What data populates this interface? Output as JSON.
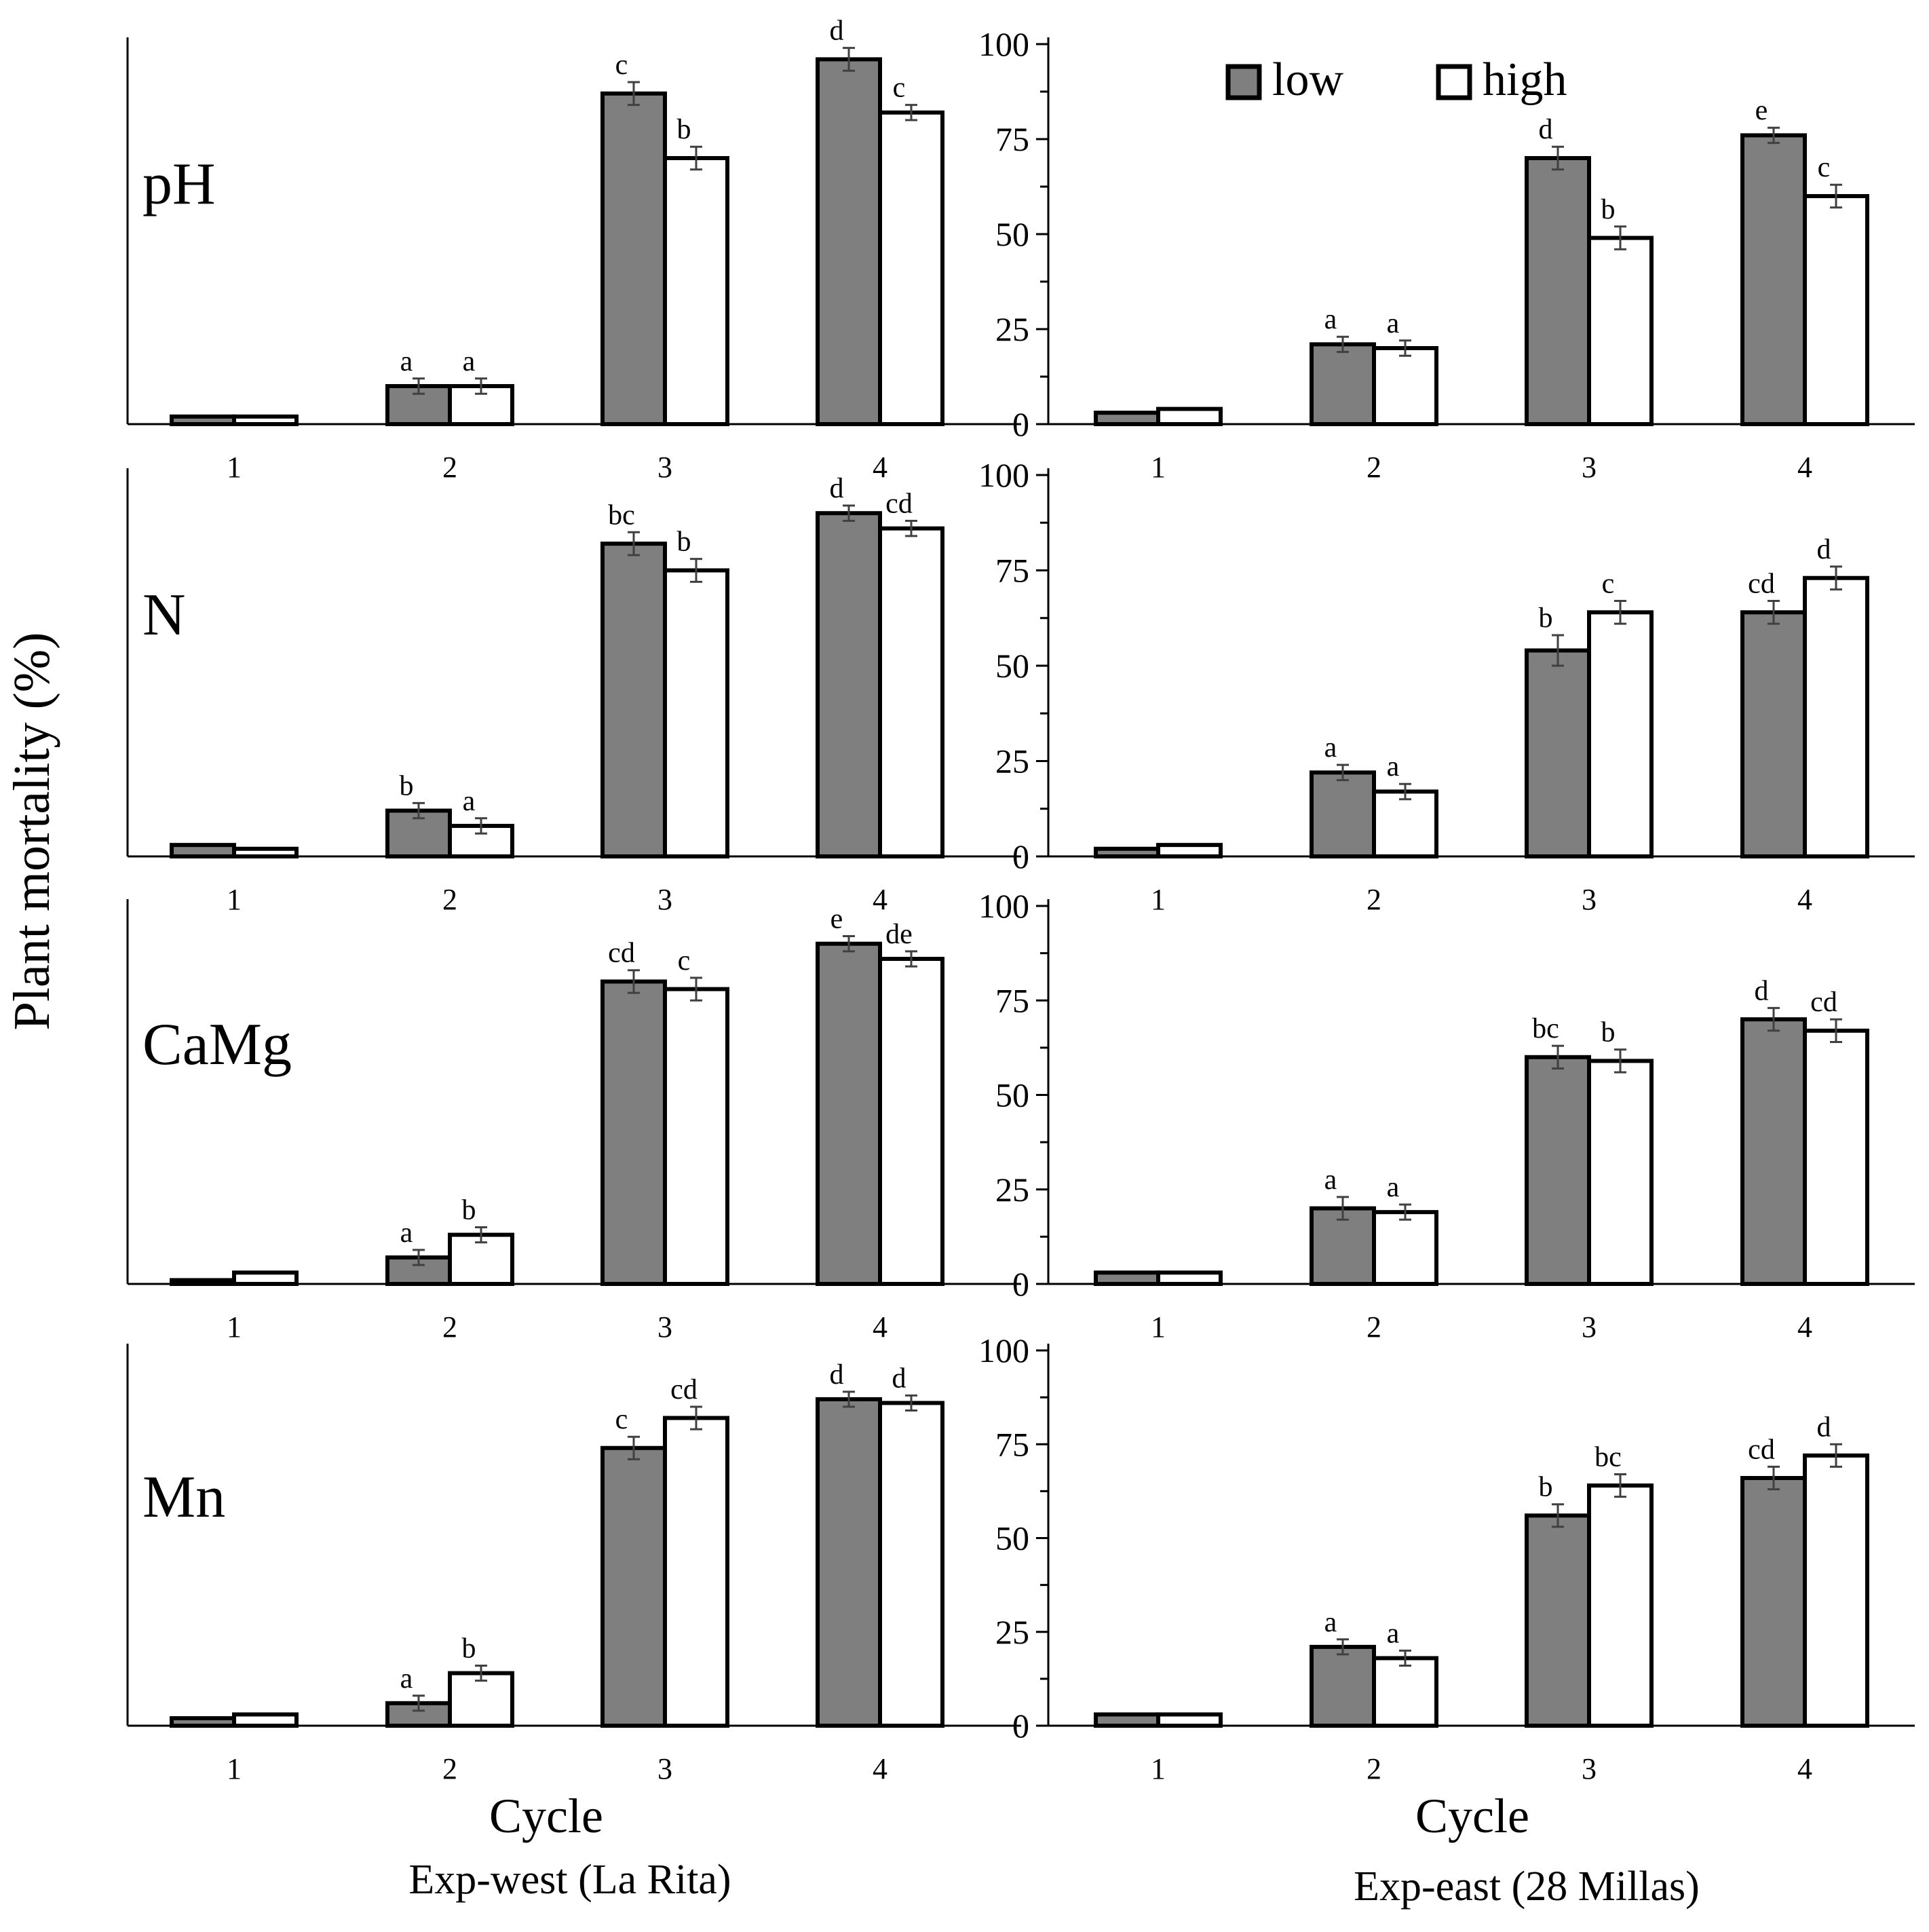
{
  "figure": {
    "ylabel": "Plant mortality (%)",
    "xlabel": "Cycle",
    "legend": [
      {
        "key": "low",
        "label": "low",
        "fill": "#7f7f7f"
      },
      {
        "key": "high",
        "label": "high",
        "fill": "#ffffff"
      }
    ],
    "columns": [
      {
        "key": "west",
        "title": "Exp-west (La Rita)"
      },
      {
        "key": "east",
        "title": "Exp-east (28 Millas)"
      }
    ],
    "colors": {
      "low": "#7f7f7f",
      "high": "#ffffff",
      "axis": "#000000",
      "error": "#404040"
    }
  },
  "chart_data": [
    {
      "type": "bar",
      "row_label": "pH",
      "column": "Exp-west (La Rita)",
      "categories": [
        "1",
        "2",
        "3",
        "4"
      ],
      "ylim": [
        0,
        100
      ],
      "series": [
        {
          "name": "low",
          "values": [
            2,
            10,
            87,
            96
          ],
          "errors": [
            0,
            2,
            3,
            3
          ],
          "letters": [
            "",
            "a",
            "c",
            "d"
          ]
        },
        {
          "name": "high",
          "values": [
            2,
            10,
            70,
            82
          ],
          "errors": [
            0,
            2,
            3,
            2
          ],
          "letters": [
            "",
            "a",
            "b",
            "c"
          ]
        }
      ]
    },
    {
      "type": "bar",
      "row_label": "pH",
      "column": "Exp-east (28 Millas)",
      "categories": [
        "1",
        "2",
        "3",
        "4"
      ],
      "ylim": [
        0,
        100
      ],
      "yticks": [
        "0",
        "25",
        "50",
        "75",
        "100"
      ],
      "series": [
        {
          "name": "low",
          "values": [
            3,
            21,
            70,
            76
          ],
          "errors": [
            0,
            2,
            3,
            2
          ],
          "letters": [
            "",
            "a",
            "d",
            "e"
          ]
        },
        {
          "name": "high",
          "values": [
            4,
            20,
            49,
            60
          ],
          "errors": [
            0,
            2,
            3,
            3
          ],
          "letters": [
            "",
            "a",
            "b",
            "c"
          ]
        }
      ]
    },
    {
      "type": "bar",
      "row_label": "N",
      "column": "Exp-west (La Rita)",
      "categories": [
        "1",
        "2",
        "3",
        "4"
      ],
      "ylim": [
        0,
        100
      ],
      "series": [
        {
          "name": "low",
          "values": [
            3,
            12,
            82,
            90
          ],
          "errors": [
            0,
            2,
            3,
            2
          ],
          "letters": [
            "",
            "b",
            "bc",
            "d"
          ]
        },
        {
          "name": "high",
          "values": [
            2,
            8,
            75,
            86
          ],
          "errors": [
            0,
            2,
            3,
            2
          ],
          "letters": [
            "",
            "a",
            "b",
            "cd"
          ]
        }
      ]
    },
    {
      "type": "bar",
      "row_label": "N",
      "column": "Exp-east (28 Millas)",
      "categories": [
        "1",
        "2",
        "3",
        "4"
      ],
      "ylim": [
        0,
        100
      ],
      "yticks": [
        "0",
        "25",
        "50",
        "75",
        "100"
      ],
      "series": [
        {
          "name": "low",
          "values": [
            2,
            22,
            54,
            64
          ],
          "errors": [
            0,
            2,
            4,
            3
          ],
          "letters": [
            "",
            "a",
            "b",
            "cd"
          ]
        },
        {
          "name": "high",
          "values": [
            3,
            17,
            64,
            73
          ],
          "errors": [
            0,
            2,
            3,
            3
          ],
          "letters": [
            "",
            "a",
            "c",
            "d"
          ]
        }
      ]
    },
    {
      "type": "bar",
      "row_label": "CaMg",
      "column": "Exp-west (La Rita)",
      "categories": [
        "1",
        "2",
        "3",
        "4"
      ],
      "ylim": [
        0,
        100
      ],
      "series": [
        {
          "name": "low",
          "values": [
            1,
            7,
            80,
            90
          ],
          "errors": [
            0,
            2,
            3,
            2
          ],
          "letters": [
            "",
            "a",
            "cd",
            "e"
          ]
        },
        {
          "name": "high",
          "values": [
            3,
            13,
            78,
            86
          ],
          "errors": [
            0,
            2,
            3,
            2
          ],
          "letters": [
            "",
            "b",
            "c",
            "de"
          ]
        }
      ]
    },
    {
      "type": "bar",
      "row_label": "CaMg",
      "column": "Exp-east (28 Millas)",
      "categories": [
        "1",
        "2",
        "3",
        "4"
      ],
      "ylim": [
        0,
        100
      ],
      "yticks": [
        "0",
        "25",
        "50",
        "75",
        "100"
      ],
      "series": [
        {
          "name": "low",
          "values": [
            3,
            20,
            60,
            70
          ],
          "errors": [
            0,
            3,
            3,
            3
          ],
          "letters": [
            "",
            "a",
            "bc",
            "d"
          ]
        },
        {
          "name": "high",
          "values": [
            3,
            19,
            59,
            67
          ],
          "errors": [
            0,
            2,
            3,
            3
          ],
          "letters": [
            "",
            "a",
            "b",
            "cd"
          ]
        }
      ]
    },
    {
      "type": "bar",
      "row_label": "Mn",
      "column": "Exp-west (La Rita)",
      "categories": [
        "1",
        "2",
        "3",
        "4"
      ],
      "ylim": [
        0,
        100
      ],
      "series": [
        {
          "name": "low",
          "values": [
            2,
            6,
            74,
            87
          ],
          "errors": [
            0,
            2,
            3,
            2
          ],
          "letters": [
            "",
            "a",
            "c",
            "d"
          ]
        },
        {
          "name": "high",
          "values": [
            3,
            14,
            82,
            86
          ],
          "errors": [
            0,
            2,
            3,
            2
          ],
          "letters": [
            "",
            "b",
            "cd",
            "d"
          ]
        }
      ]
    },
    {
      "type": "bar",
      "row_label": "Mn",
      "column": "Exp-east (28 Millas)",
      "categories": [
        "1",
        "2",
        "3",
        "4"
      ],
      "ylim": [
        0,
        100
      ],
      "yticks": [
        "0",
        "25",
        "50",
        "75",
        "100"
      ],
      "series": [
        {
          "name": "low",
          "values": [
            3,
            21,
            56,
            66
          ],
          "errors": [
            0,
            2,
            3,
            3
          ],
          "letters": [
            "",
            "a",
            "b",
            "cd"
          ]
        },
        {
          "name": "high",
          "values": [
            3,
            18,
            64,
            72
          ],
          "errors": [
            0,
            2,
            3,
            3
          ],
          "letters": [
            "",
            "a",
            "bc",
            "d"
          ]
        }
      ]
    }
  ]
}
